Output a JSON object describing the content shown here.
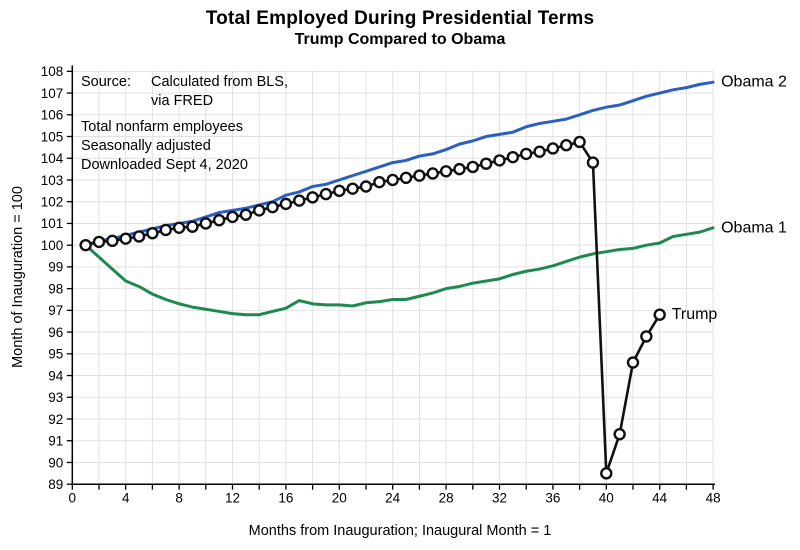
{
  "header": {
    "title": "Total Employed During Presidential Terms",
    "subtitle": "Trump Compared to Obama"
  },
  "annotation": {
    "source_label": "Source:",
    "source_value": "Calculated from BLS,",
    "source_value2": "via FRED",
    "notes": [
      "Total nonfarm employees",
      "Seasonally adjusted",
      "Downloaded Sept 4, 2020"
    ]
  },
  "chart_data": {
    "type": "line",
    "title": "Total Employed During Presidential Terms",
    "subtitle": "Trump Compared to Obama",
    "xlabel": "Months from Inauguration; Inaugural Month = 1",
    "ylabel": "Month of Inauguration = 100",
    "xlim": [
      0,
      48
    ],
    "ylim": [
      89,
      108
    ],
    "x_tick_step": 2,
    "x_label_step": 4,
    "y_tick_step": 1,
    "grid": true,
    "grid_color": "#e2e2e2",
    "legend_position": "line-end-labels",
    "series": [
      {
        "name": "Obama 2",
        "color": "#2b5fc2",
        "width": 3,
        "marker": false,
        "x_start": 1,
        "values": [
          100.0,
          100.2,
          100.3,
          100.45,
          100.6,
          100.75,
          100.9,
          101.0,
          101.1,
          101.3,
          101.5,
          101.6,
          101.7,
          101.85,
          102.0,
          102.3,
          102.45,
          102.7,
          102.8,
          103.0,
          103.2,
          103.4,
          103.6,
          103.8,
          103.9,
          104.1,
          104.2,
          104.4,
          104.65,
          104.8,
          105.0,
          105.1,
          105.2,
          105.45,
          105.6,
          105.7,
          105.8,
          106.0,
          106.2,
          106.35,
          106.45,
          106.65,
          106.85,
          107.0,
          107.15,
          107.25,
          107.4,
          107.5
        ]
      },
      {
        "name": "Obama 1",
        "color": "#1e8a50",
        "width": 3,
        "marker": false,
        "x_start": 1,
        "values": [
          100.0,
          99.45,
          98.9,
          98.35,
          98.1,
          97.75,
          97.5,
          97.3,
          97.15,
          97.05,
          96.95,
          96.85,
          96.8,
          96.8,
          96.95,
          97.1,
          97.45,
          97.3,
          97.25,
          97.25,
          97.2,
          97.35,
          97.4,
          97.5,
          97.5,
          97.65,
          97.8,
          98.0,
          98.1,
          98.25,
          98.35,
          98.45,
          98.65,
          98.8,
          98.9,
          99.05,
          99.25,
          99.45,
          99.6,
          99.7,
          99.8,
          99.85,
          100.0,
          100.1,
          100.4,
          100.5,
          100.6,
          100.8
        ]
      },
      {
        "name": "Trump",
        "color": "#111111",
        "width": 2.6,
        "marker": true,
        "marker_fill": "#ffffff",
        "marker_radius": 5,
        "x_start": 1,
        "values": [
          100.0,
          100.15,
          100.2,
          100.3,
          100.4,
          100.55,
          100.7,
          100.8,
          100.85,
          101.0,
          101.15,
          101.3,
          101.4,
          101.6,
          101.75,
          101.9,
          102.05,
          102.2,
          102.35,
          102.5,
          102.6,
          102.7,
          102.9,
          103.0,
          103.1,
          103.2,
          103.3,
          103.4,
          103.5,
          103.6,
          103.75,
          103.9,
          104.05,
          104.2,
          104.3,
          104.45,
          104.6,
          104.75,
          103.8,
          89.5,
          91.3,
          94.6,
          95.8,
          96.8
        ]
      }
    ]
  }
}
